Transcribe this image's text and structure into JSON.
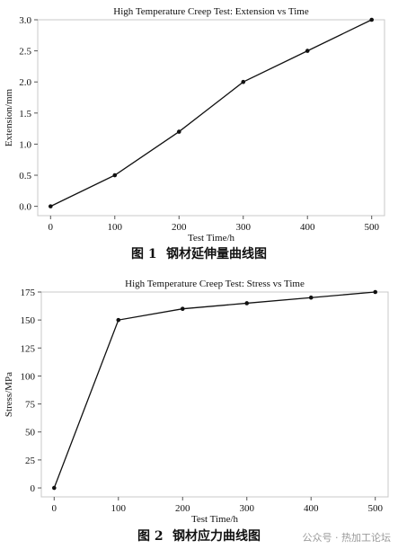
{
  "chart_data": [
    {
      "type": "line",
      "title": "High Temperature Creep Test: Extension vs Time",
      "xlabel": "Test Time/h",
      "ylabel": "Extension/mm",
      "x": [
        0,
        100,
        200,
        300,
        400,
        500
      ],
      "xlim": [
        -20,
        520
      ],
      "ylim": [
        -0.15,
        3.0
      ],
      "xticks": [
        "0",
        "100",
        "200",
        "300",
        "400",
        "500"
      ],
      "yticks": [
        "0.0",
        "0.5",
        "1.0",
        "1.5",
        "2.0",
        "2.5",
        "3.0"
      ],
      "grid": false,
      "series": [
        {
          "values": [
            0,
            0.5,
            1.2,
            2.0,
            2.5,
            3.0
          ],
          "color": "#111111"
        }
      ]
    },
    {
      "type": "line",
      "title": "High Temperature Creep Test: Stress  vs Time",
      "xlabel": "Test Time/h",
      "ylabel": "Stress/MPa",
      "x": [
        0,
        100,
        200,
        300,
        400,
        500
      ],
      "xlim": [
        -20,
        520
      ],
      "ylim": [
        -8,
        175
      ],
      "xticks": [
        "0",
        "100",
        "200",
        "300",
        "400",
        "500"
      ],
      "yticks": [
        "0",
        "25",
        "50",
        "75",
        "100",
        "125",
        "150",
        "175"
      ],
      "grid": false,
      "series": [
        {
          "values": [
            0,
            150,
            160,
            165,
            170,
            175
          ],
          "color": "#111111"
        }
      ]
    }
  ],
  "captions": [
    {
      "number": "图 1",
      "title": "钢材延伸量曲线图"
    },
    {
      "number": "图 2",
      "title": "钢材应力曲线图"
    }
  ],
  "watermark": "公众号 · 热加工论坛"
}
